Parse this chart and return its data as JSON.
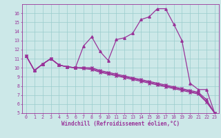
{
  "xlabel": "Windchill (Refroidissement éolien,°C)",
  "xlim": [
    -0.5,
    23.5
  ],
  "ylim": [
    5,
    17
  ],
  "xticks": [
    0,
    1,
    2,
    3,
    4,
    5,
    6,
    7,
    8,
    9,
    10,
    11,
    12,
    13,
    14,
    15,
    16,
    17,
    18,
    19,
    20,
    21,
    22,
    23
  ],
  "yticks": [
    5,
    6,
    7,
    8,
    9,
    10,
    11,
    12,
    13,
    14,
    15,
    16
  ],
  "bg_color": "#cce8e8",
  "grid_color": "#99cccc",
  "line_color": "#993399",
  "curve_peaked_x": [
    0,
    1,
    2,
    3,
    4,
    5,
    6,
    7,
    8,
    9,
    10,
    11,
    12,
    13,
    14,
    15,
    16,
    17,
    18,
    19,
    20,
    21,
    22,
    23
  ],
  "curve_peaked_y": [
    11.3,
    9.7,
    10.4,
    11.0,
    10.3,
    10.1,
    10.0,
    12.4,
    13.4,
    11.8,
    10.8,
    13.1,
    13.3,
    13.8,
    15.3,
    15.6,
    16.5,
    16.5,
    14.8,
    13.0,
    8.3,
    7.6,
    7.6,
    5.0
  ],
  "curve_flat1_x": [
    0,
    1,
    2,
    3,
    4,
    5,
    6,
    7,
    8,
    9,
    10,
    11,
    12,
    13,
    14,
    15,
    16,
    17,
    18,
    19,
    20,
    21,
    22,
    23
  ],
  "curve_flat1_y": [
    11.3,
    9.7,
    10.4,
    11.0,
    10.3,
    10.1,
    10.0,
    10.0,
    10.0,
    9.7,
    9.5,
    9.3,
    9.1,
    8.9,
    8.7,
    8.5,
    8.3,
    8.1,
    7.9,
    7.7,
    7.5,
    7.3,
    6.5,
    5.0
  ],
  "curve_flat2_x": [
    0,
    1,
    2,
    3,
    4,
    5,
    6,
    7,
    8,
    9,
    10,
    11,
    12,
    13,
    14,
    15,
    16,
    17,
    18,
    19,
    20,
    21,
    22,
    23
  ],
  "curve_flat2_y": [
    11.3,
    9.7,
    10.4,
    11.0,
    10.3,
    10.1,
    10.0,
    10.0,
    9.9,
    9.6,
    9.4,
    9.2,
    9.0,
    8.8,
    8.6,
    8.4,
    8.2,
    8.0,
    7.8,
    7.6,
    7.4,
    7.2,
    6.3,
    5.0
  ],
  "curve_flat3_x": [
    0,
    1,
    2,
    3,
    4,
    5,
    6,
    7,
    8,
    9,
    10,
    11,
    12,
    13,
    14,
    15,
    16,
    17,
    18,
    19,
    20,
    21,
    22,
    23
  ],
  "curve_flat3_y": [
    11.3,
    9.7,
    10.4,
    11.0,
    10.3,
    10.1,
    10.0,
    9.9,
    9.8,
    9.5,
    9.3,
    9.1,
    8.9,
    8.7,
    8.5,
    8.3,
    8.1,
    7.9,
    7.7,
    7.5,
    7.3,
    7.1,
    6.2,
    5.0
  ]
}
